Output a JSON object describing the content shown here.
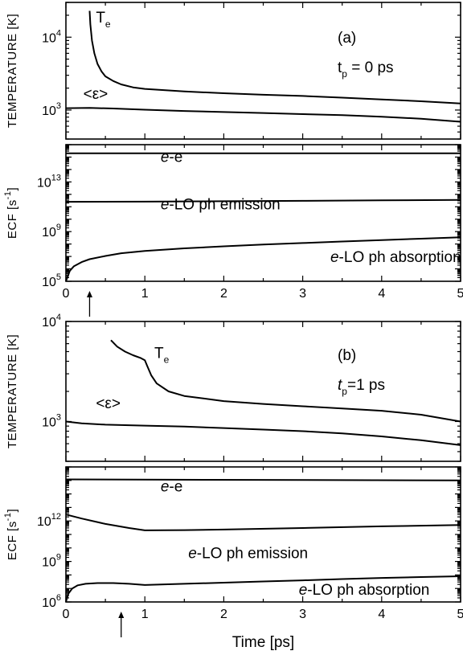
{
  "chart_data": [
    {
      "id": "a_temperature",
      "type": "line",
      "xlim": [
        0,
        5
      ],
      "ylim": [
        400,
        30000
      ],
      "yscale": "log",
      "ylabel": "TEMPERATURE [K]",
      "yticks": [
        {
          "value": 10000,
          "base": "10",
          "exp": "4"
        },
        {
          "value": 1000,
          "base": "10",
          "exp": "3"
        }
      ],
      "panel_label": "(a)",
      "param_label": {
        "main": "t",
        "sub": "p",
        "rest": " = 0 ps"
      },
      "series": [
        {
          "name": "T",
          "name_sub": "e",
          "label_at": [
            0.38,
            16000
          ],
          "x": [
            0.3,
            0.31,
            0.33,
            0.36,
            0.4,
            0.45,
            0.5,
            0.6,
            0.7,
            0.85,
            1.0,
            1.5,
            2.0,
            2.5,
            3.0,
            3.5,
            4.0,
            4.5,
            5.0
          ],
          "y": [
            23000,
            15000,
            9000,
            6000,
            4300,
            3400,
            2900,
            2500,
            2250,
            2050,
            1950,
            1800,
            1700,
            1620,
            1560,
            1480,
            1400,
            1320,
            1230
          ]
        },
        {
          "name": "<ε>",
          "label_at": [
            0.22,
            1420
          ],
          "x": [
            0,
            0.3,
            0.6,
            1.0,
            1.5,
            2.0,
            2.5,
            3.0,
            3.5,
            4.0,
            4.5,
            5.0
          ],
          "y": [
            1060,
            1070,
            1050,
            1010,
            970,
            940,
            910,
            880,
            850,
            810,
            760,
            690
          ]
        }
      ]
    },
    {
      "id": "a_ecf",
      "type": "line",
      "xlim": [
        0,
        5
      ],
      "ylim": [
        100000,
        10000000000000000
      ],
      "yscale": "log",
      "ylabel": "ECF [s-1]",
      "ylabel_base": "ECF [s",
      "ylabel_exp": "-1",
      "ylabel_end": "]",
      "yticks": [
        {
          "value": 10000000000000,
          "base": "10",
          "exp": "13"
        },
        {
          "value": 1000000000,
          "base": "10",
          "exp": "9"
        },
        {
          "value": 100000,
          "base": "10",
          "exp": "5"
        }
      ],
      "xticks": [
        "0",
        "1",
        "2",
        "3",
        "4",
        "5"
      ],
      "arrow_x": 0.3,
      "series": [
        {
          "name": "e-e",
          "name_italic": "e",
          "name_rest": "-e",
          "label_at": [
            1.2,
            400000000000000
          ],
          "x": [
            0,
            5
          ],
          "y": [
            2000000000000000,
            2000000000000000
          ]
        },
        {
          "name": "e-LO ph emission",
          "name_italic": "e",
          "name_rest": "-LO ph emission",
          "label_at": [
            1.2,
            60000000000
          ],
          "x": [
            0,
            1,
            2,
            3,
            4,
            5
          ],
          "y": [
            250000000000,
            260000000000,
            280000000000,
            300000000000,
            330000000000,
            360000000000
          ]
        },
        {
          "name": "e-LO ph absorption",
          "name_italic": "e",
          "name_rest": "-LO ph absorption",
          "label_at": [
            3.35,
            3500000
          ],
          "x": [
            0,
            0.05,
            0.1,
            0.2,
            0.3,
            0.5,
            0.7,
            1.0,
            1.5,
            2.0,
            2.5,
            3.0,
            3.5,
            4.0,
            4.5,
            5.0
          ],
          "y": [
            100000,
            700000,
            1600000,
            3500000,
            6000000,
            11000000,
            18000000,
            28000000,
            45000000,
            65000000,
            90000000,
            120000000,
            160000000,
            210000000,
            270000000,
            350000000
          ]
        }
      ]
    },
    {
      "id": "b_temperature",
      "type": "line",
      "xlim": [
        0,
        5
      ],
      "ylim": [
        400,
        10000
      ],
      "yscale": "log",
      "ylabel": "TEMPERATURE [K]",
      "yticks": [
        {
          "value": 10000,
          "base": "10",
          "exp": "4"
        },
        {
          "value": 1000,
          "base": "10",
          "exp": "3"
        }
      ],
      "panel_label": "(b)",
      "param_label": {
        "main": "t",
        "sub": "p",
        "rest": "=1 ps"
      },
      "series": [
        {
          "name": "T",
          "name_sub": "e",
          "label_at": [
            1.12,
            4300
          ],
          "x": [
            0.57,
            0.65,
            0.75,
            0.85,
            0.95,
            1.0,
            1.03,
            1.08,
            1.15,
            1.3,
            1.5,
            2.0,
            2.5,
            3.0,
            3.5,
            4.0,
            4.5,
            5.0
          ],
          "y": [
            6500,
            5600,
            5000,
            4600,
            4300,
            4100,
            3600,
            2900,
            2400,
            2000,
            1800,
            1600,
            1500,
            1420,
            1350,
            1280,
            1170,
            1000
          ]
        },
        {
          "name": "<ε>",
          "label_at": [
            0.38,
            1350
          ],
          "x": [
            0,
            0.2,
            0.5,
            1.0,
            1.5,
            2.0,
            2.5,
            3.0,
            3.5,
            4.0,
            4.5,
            5.0
          ],
          "y": [
            1000,
            960,
            930,
            910,
            890,
            860,
            830,
            800,
            760,
            710,
            650,
            580
          ]
        }
      ]
    },
    {
      "id": "b_ecf",
      "type": "line",
      "xlim": [
        0,
        5
      ],
      "ylim": [
        1000000,
        10000000000000000
      ],
      "yscale": "log",
      "ylabel": "ECF [s-1]",
      "ylabel_base": "ECF [s",
      "ylabel_exp": "-1",
      "ylabel_end": "]",
      "yticks": [
        {
          "value": 1000000000000,
          "base": "10",
          "exp": "12"
        },
        {
          "value": 1000000000,
          "base": "10",
          "exp": "9"
        },
        {
          "value": 1000000,
          "base": "10",
          "exp": "6"
        }
      ],
      "xticks": [
        "0",
        "1",
        "2",
        "3",
        "4",
        "5"
      ],
      "xlabel": "Time [ps]",
      "arrow_x": 0.7,
      "series": [
        {
          "name": "e-e",
          "name_italic": "e",
          "name_rest": "-e",
          "label_at": [
            1.2,
            150000000000000
          ],
          "x": [
            0,
            5
          ],
          "y": [
            1200000000000000,
            1000000000000000
          ]
        },
        {
          "name": "e-LO ph emission",
          "name_italic": "e",
          "name_rest": "-LO ph emission",
          "label_at": [
            1.55,
            1800000000
          ],
          "x": [
            0,
            0.2,
            0.5,
            0.8,
            1.0,
            1.5,
            2.0,
            3.0,
            4.0,
            5.0
          ],
          "y": [
            3000000000000,
            1500000000000,
            600000000000,
            300000000000,
            200000000000,
            210000000000,
            230000000000,
            300000000000,
            400000000000,
            500000000000
          ]
        },
        {
          "name": "e-LO ph absorption",
          "name_italic": "e",
          "name_rest": "-LO ph absorption",
          "label_at": [
            2.95,
            3500000
          ],
          "x": [
            0,
            0.03,
            0.08,
            0.15,
            0.25,
            0.4,
            0.6,
            0.8,
            1.0,
            1.5,
            2.0,
            2.5,
            3.0,
            3.5,
            4.0,
            4.5,
            5.0
          ],
          "y": [
            1000000,
            4000000,
            10000000,
            17000000,
            22000000,
            25000000,
            25000000,
            22000000,
            18000000,
            22000000,
            27000000,
            33000000,
            40000000,
            50000000,
            60000000,
            70000000,
            80000000
          ]
        }
      ]
    }
  ]
}
